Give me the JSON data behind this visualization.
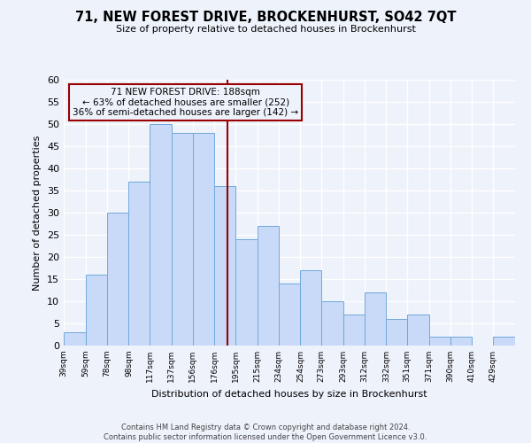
{
  "title": "71, NEW FOREST DRIVE, BROCKENHURST, SO42 7QT",
  "subtitle": "Size of property relative to detached houses in Brockenhurst",
  "xlabel": "Distribution of detached houses by size in Brockenhurst",
  "ylabel": "Number of detached properties",
  "bin_labels": [
    "39sqm",
    "59sqm",
    "78sqm",
    "98sqm",
    "117sqm",
    "137sqm",
    "156sqm",
    "176sqm",
    "195sqm",
    "215sqm",
    "234sqm",
    "254sqm",
    "273sqm",
    "293sqm",
    "312sqm",
    "332sqm",
    "351sqm",
    "371sqm",
    "390sqm",
    "410sqm",
    "429sqm"
  ],
  "bin_edges": [
    39,
    59,
    78,
    98,
    117,
    137,
    156,
    176,
    195,
    215,
    234,
    254,
    273,
    293,
    312,
    332,
    351,
    371,
    390,
    410,
    429,
    449
  ],
  "values": [
    3,
    16,
    30,
    37,
    50,
    48,
    48,
    36,
    24,
    27,
    14,
    17,
    10,
    7,
    12,
    6,
    7,
    2,
    2,
    0,
    2
  ],
  "bar_color": "#c9daf8",
  "bar_edge_color": "#6fa8dc",
  "property_size": 188,
  "annotation_line_color": "#990000",
  "annotation_box_color": "#990000",
  "annotation_text": "71 NEW FOREST DRIVE: 188sqm\n← 63% of detached houses are smaller (252)\n36% of semi-detached houses are larger (142) →",
  "ylim": [
    0,
    60
  ],
  "yticks": [
    0,
    5,
    10,
    15,
    20,
    25,
    30,
    35,
    40,
    45,
    50,
    55,
    60
  ],
  "background_color": "#eef2fb",
  "grid_color": "#ffffff",
  "footer_line1": "Contains HM Land Registry data © Crown copyright and database right 2024.",
  "footer_line2": "Contains public sector information licensed under the Open Government Licence v3.0."
}
